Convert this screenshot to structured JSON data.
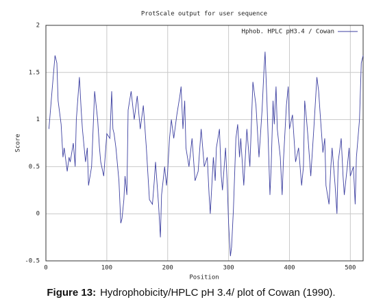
{
  "chart_data": {
    "type": "line",
    "title": "ProtScale output for user sequence",
    "xlabel": "Position",
    "ylabel": "Score",
    "x": [
      5,
      10,
      15,
      18,
      20,
      25,
      28,
      30,
      35,
      38,
      40,
      45,
      48,
      50,
      55,
      58,
      60,
      65,
      68,
      70,
      75,
      80,
      85,
      88,
      90,
      95,
      100,
      105,
      108,
      110,
      112,
      115,
      120,
      123,
      125,
      128,
      130,
      133,
      135,
      140,
      145,
      150,
      155,
      160,
      165,
      170,
      175,
      178,
      180,
      185,
      188,
      190,
      195,
      198,
      200,
      203,
      206,
      210,
      215,
      220,
      222,
      225,
      228,
      230,
      235,
      240,
      245,
      250,
      255,
      260,
      265,
      268,
      270,
      275,
      278,
      280,
      285,
      288,
      290,
      295,
      298,
      300,
      303,
      305,
      308,
      312,
      315,
      318,
      320,
      325,
      330,
      335,
      340,
      345,
      350,
      355,
      358,
      360,
      363,
      365,
      368,
      370,
      373,
      375,
      378,
      380,
      385,
      388,
      390,
      395,
      398,
      400,
      405,
      410,
      415,
      420,
      423,
      425,
      428,
      430,
      435,
      440,
      445,
      448,
      450,
      455,
      458,
      460,
      465,
      468,
      470,
      475,
      478,
      480,
      485,
      488,
      490,
      495,
      498,
      500,
      505,
      508,
      510,
      515,
      518,
      521
    ],
    "series": [
      {
        "name": "Hphob. HPLC pH3.4 / Cowan",
        "color": "#3c3fa0",
        "values": [
          0.9,
          1.3,
          1.68,
          1.6,
          1.2,
          0.95,
          0.6,
          0.7,
          0.45,
          0.6,
          0.55,
          0.75,
          0.5,
          1.0,
          1.45,
          1.1,
          0.9,
          0.55,
          0.7,
          0.3,
          0.5,
          1.3,
          1.0,
          0.7,
          0.55,
          0.4,
          0.85,
          0.8,
          1.3,
          0.9,
          0.85,
          0.7,
          0.35,
          -0.1,
          -0.05,
          0.15,
          0.4,
          0.2,
          1.1,
          1.3,
          1.0,
          1.25,
          0.9,
          1.15,
          0.7,
          0.15,
          0.1,
          0.35,
          0.55,
          0.1,
          -0.25,
          0.2,
          0.5,
          0.3,
          0.45,
          0.8,
          1.0,
          0.8,
          1.05,
          1.25,
          1.35,
          0.9,
          1.2,
          0.7,
          0.5,
          0.8,
          0.35,
          0.45,
          0.9,
          0.5,
          0.6,
          0.2,
          0.0,
          0.6,
          0.35,
          0.7,
          0.9,
          0.4,
          0.25,
          0.7,
          0.3,
          -0.1,
          -0.45,
          -0.35,
          0.05,
          0.8,
          0.95,
          0.6,
          0.8,
          0.3,
          0.9,
          0.5,
          1.4,
          1.15,
          0.6,
          1.1,
          1.5,
          1.72,
          1.2,
          0.8,
          0.2,
          0.5,
          1.2,
          0.95,
          1.35,
          0.9,
          0.6,
          0.2,
          0.55,
          1.15,
          1.35,
          0.9,
          1.05,
          0.55,
          0.7,
          0.3,
          0.5,
          1.2,
          1.0,
          0.85,
          0.4,
          0.9,
          1.45,
          1.3,
          1.1,
          0.65,
          0.8,
          0.3,
          0.1,
          0.5,
          0.7,
          0.3,
          0.0,
          0.55,
          0.8,
          0.4,
          0.2,
          0.5,
          0.7,
          0.4,
          0.5,
          0.1,
          0.6,
          1.0,
          1.6,
          1.68
        ]
      }
    ],
    "xlim": [
      0,
      521
    ],
    "ylim": [
      -0.5,
      2
    ],
    "xticks": [
      0,
      100,
      200,
      300,
      400,
      500
    ],
    "yticks": [
      -0.5,
      0,
      0.5,
      1,
      1.5,
      2
    ],
    "grid": true,
    "legend": "upper right"
  },
  "caption": {
    "label": "Figure 13:",
    "text": "Hydrophobicity/HPLC pH 3.4/ plot of Cowan (1990)."
  }
}
